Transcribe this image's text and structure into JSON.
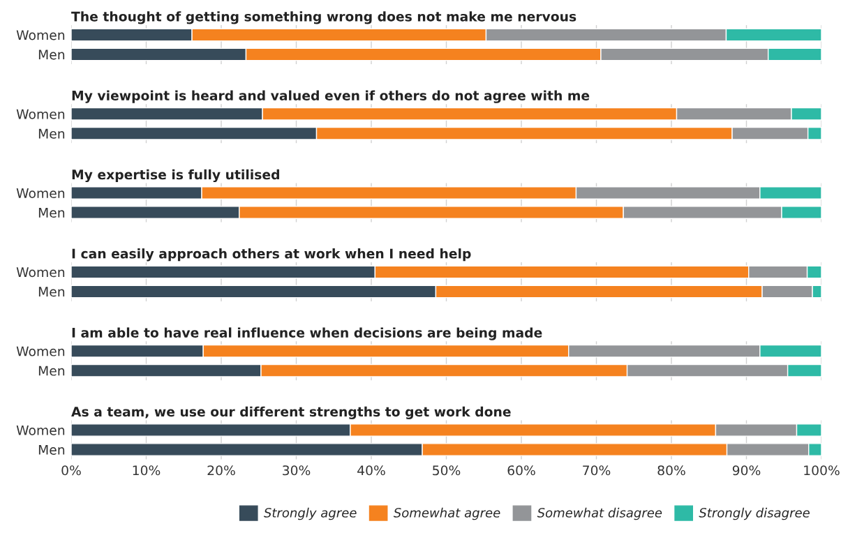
{
  "chart_data": [
    {
      "type": "bar",
      "orientation": "horizontal",
      "stacked": true,
      "title": "The thought of getting something wrong does not make me nervous",
      "categories": [
        "Women",
        "Men"
      ],
      "xlim": [
        0,
        100
      ],
      "xticks": [
        {
          "value": 0,
          "label": null
        },
        {
          "value": 10,
          "label": null
        },
        {
          "value": 20,
          "label": null
        },
        {
          "value": 30,
          "label": null
        },
        {
          "value": 40,
          "label": null
        },
        {
          "value": 50,
          "label": null
        },
        {
          "value": 60,
          "label": null
        },
        {
          "value": 70,
          "label": null
        },
        {
          "value": 80,
          "label": null
        },
        {
          "value": 90,
          "label": null
        },
        {
          "value": 100,
          "label": null
        }
      ],
      "grid": "x",
      "tick_labels": "y",
      "legend": false,
      "series": [
        {
          "color": "#374b5a",
          "values": [
            16.1,
            23.3
          ]
        },
        {
          "color": "#f5821f",
          "values": [
            39.2,
            47.3
          ]
        },
        {
          "color": "#939598",
          "values": [
            32.0,
            22.3
          ]
        },
        {
          "color": "#2ebaa6",
          "values": [
            12.7,
            7.1
          ]
        }
      ]
    },
    {
      "type": "bar",
      "orientation": "horizontal",
      "stacked": true,
      "title": "My viewpoint is heard and valued even if others do not agree with me",
      "categories": [
        "Women",
        "Men"
      ],
      "xlim": [
        0,
        100
      ],
      "xticks": [
        {
          "value": 0,
          "label": null
        },
        {
          "value": 10,
          "label": null
        },
        {
          "value": 20,
          "label": null
        },
        {
          "value": 30,
          "label": null
        },
        {
          "value": 40,
          "label": null
        },
        {
          "value": 50,
          "label": null
        },
        {
          "value": 60,
          "label": null
        },
        {
          "value": 70,
          "label": null
        },
        {
          "value": 80,
          "label": null
        },
        {
          "value": 90,
          "label": null
        },
        {
          "value": 100,
          "label": null
        }
      ],
      "grid": "x",
      "tick_labels": "y",
      "legend": false,
      "series": [
        {
          "color": "#374b5a",
          "values": [
            25.5,
            32.7
          ]
        },
        {
          "color": "#f5821f",
          "values": [
            55.2,
            55.4
          ]
        },
        {
          "color": "#939598",
          "values": [
            15.3,
            10.1
          ]
        },
        {
          "color": "#2ebaa6",
          "values": [
            4.0,
            1.8
          ]
        }
      ]
    },
    {
      "type": "bar",
      "orientation": "horizontal",
      "stacked": true,
      "title": "My expertise is fully utilised",
      "categories": [
        "Women",
        "Men"
      ],
      "xlim": [
        0,
        100
      ],
      "xticks": [
        {
          "value": 0,
          "label": null
        },
        {
          "value": 10,
          "label": null
        },
        {
          "value": 20,
          "label": null
        },
        {
          "value": 30,
          "label": null
        },
        {
          "value": 40,
          "label": null
        },
        {
          "value": 50,
          "label": null
        },
        {
          "value": 60,
          "label": null
        },
        {
          "value": 70,
          "label": null
        },
        {
          "value": 80,
          "label": null
        },
        {
          "value": 90,
          "label": null
        },
        {
          "value": 100,
          "label": null
        }
      ],
      "grid": "x",
      "tick_labels": "y",
      "legend": false,
      "series": [
        {
          "color": "#374b5a",
          "values": [
            17.4,
            22.4
          ]
        },
        {
          "color": "#f5821f",
          "values": [
            49.9,
            51.2
          ]
        },
        {
          "color": "#939598",
          "values": [
            24.5,
            21.1
          ]
        },
        {
          "color": "#2ebaa6",
          "values": [
            8.2,
            5.3
          ]
        }
      ]
    },
    {
      "type": "bar",
      "orientation": "horizontal",
      "stacked": true,
      "title": "I can easily approach others at work when I need help",
      "categories": [
        "Women",
        "Men"
      ],
      "xlim": [
        0,
        100
      ],
      "xticks": [
        {
          "value": 0,
          "label": null
        },
        {
          "value": 10,
          "label": null
        },
        {
          "value": 20,
          "label": null
        },
        {
          "value": 30,
          "label": null
        },
        {
          "value": 40,
          "label": null
        },
        {
          "value": 50,
          "label": null
        },
        {
          "value": 60,
          "label": null
        },
        {
          "value": 70,
          "label": null
        },
        {
          "value": 80,
          "label": null
        },
        {
          "value": 90,
          "label": null
        },
        {
          "value": 100,
          "label": null
        }
      ],
      "grid": "x",
      "tick_labels": "y",
      "legend": false,
      "series": [
        {
          "color": "#374b5a",
          "values": [
            40.5,
            48.6
          ]
        },
        {
          "color": "#f5821f",
          "values": [
            49.8,
            43.5
          ]
        },
        {
          "color": "#939598",
          "values": [
            7.8,
            6.7
          ]
        },
        {
          "color": "#2ebaa6",
          "values": [
            1.9,
            1.2
          ]
        }
      ]
    },
    {
      "type": "bar",
      "orientation": "horizontal",
      "stacked": true,
      "title": "I am able to have real influence when decisions are being made",
      "categories": [
        "Women",
        "Men"
      ],
      "xlim": [
        0,
        100
      ],
      "xticks": [
        {
          "value": 0,
          "label": null
        },
        {
          "value": 10,
          "label": null
        },
        {
          "value": 20,
          "label": null
        },
        {
          "value": 30,
          "label": null
        },
        {
          "value": 40,
          "label": null
        },
        {
          "value": 50,
          "label": null
        },
        {
          "value": 60,
          "label": null
        },
        {
          "value": 70,
          "label": null
        },
        {
          "value": 80,
          "label": null
        },
        {
          "value": 90,
          "label": null
        },
        {
          "value": 100,
          "label": null
        }
      ],
      "grid": "x",
      "tick_labels": "y",
      "legend": false,
      "series": [
        {
          "color": "#374b5a",
          "values": [
            17.6,
            25.3
          ]
        },
        {
          "color": "#f5821f",
          "values": [
            48.7,
            48.8
          ]
        },
        {
          "color": "#939598",
          "values": [
            25.5,
            21.4
          ]
        },
        {
          "color": "#2ebaa6",
          "values": [
            8.2,
            4.5
          ]
        }
      ]
    },
    {
      "type": "bar",
      "orientation": "horizontal",
      "stacked": true,
      "title": "As a team, we use our different strengths to get work done",
      "categories": [
        "Women",
        "Men"
      ],
      "xlim": [
        0,
        100
      ],
      "xticks": [
        {
          "value": 0,
          "label": "0%"
        },
        {
          "value": 10,
          "label": "10%"
        },
        {
          "value": 20,
          "label": "20%"
        },
        {
          "value": 30,
          "label": "30%"
        },
        {
          "value": 40,
          "label": "40%"
        },
        {
          "value": 50,
          "label": "50%"
        },
        {
          "value": 60,
          "label": "60%"
        },
        {
          "value": 70,
          "label": "70%"
        },
        {
          "value": 80,
          "label": "80%"
        },
        {
          "value": 90,
          "label": "90%"
        },
        {
          "value": 100,
          "label": "100%"
        }
      ],
      "grid": "x",
      "legend": "bottom right",
      "series": [
        {
          "name": "Strongly agree",
          "color": "#374b5a",
          "values": [
            37.2,
            46.8
          ]
        },
        {
          "name": "Somewhat agree",
          "color": "#f5821f",
          "values": [
            48.7,
            40.6
          ]
        },
        {
          "name": "Somewhat disagree",
          "color": "#939598",
          "values": [
            10.8,
            10.9
          ]
        },
        {
          "name": "Strongly disagree",
          "color": "#2ebaa6",
          "values": [
            3.3,
            1.7
          ]
        }
      ]
    }
  ]
}
